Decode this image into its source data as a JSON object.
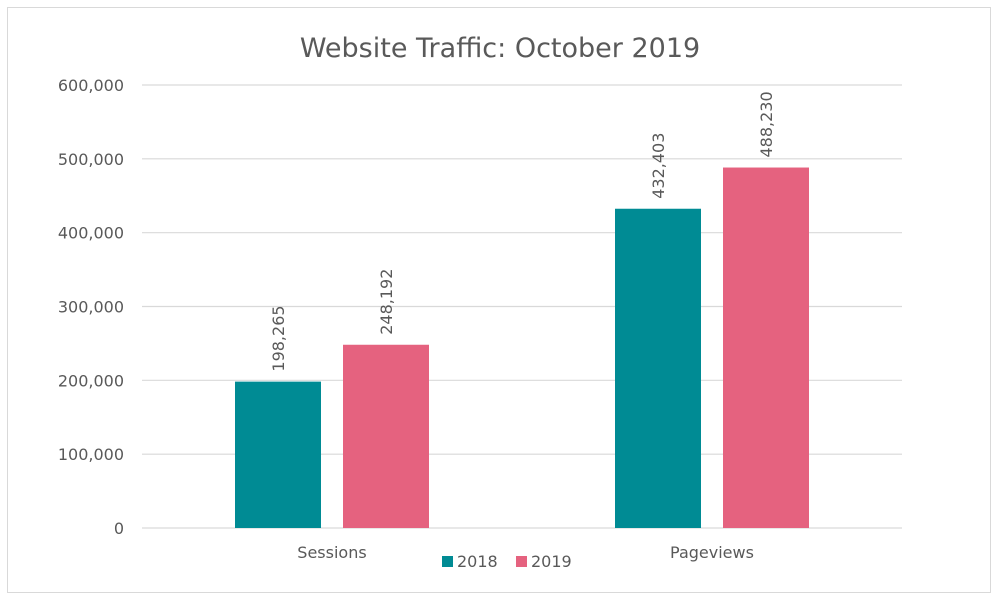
{
  "chart_data": {
    "type": "bar",
    "title": "Website Traffic: October 2019",
    "categories": [
      "Sessions",
      "Pageviews"
    ],
    "series": [
      {
        "name": "2018",
        "values": [
          198265,
          432403
        ],
        "labels": [
          "198,265",
          "432,403"
        ]
      },
      {
        "name": "2019",
        "values": [
          248192,
          488230
        ],
        "labels": [
          "248,192",
          "488,230"
        ]
      }
    ],
    "ylim": [
      0,
      600000
    ],
    "yticks": [
      0,
      100000,
      200000,
      300000,
      400000,
      500000,
      600000
    ],
    "ytick_labels": [
      "0",
      "100,000",
      "200,000",
      "300,000",
      "400,000",
      "500,000",
      "600,000"
    ],
    "grid": true,
    "legend_position": "bottom",
    "colors": {
      "2018": "#008b94",
      "2019": "#e5627f",
      "grid": "#d9d9d9",
      "text": "#595959"
    }
  }
}
